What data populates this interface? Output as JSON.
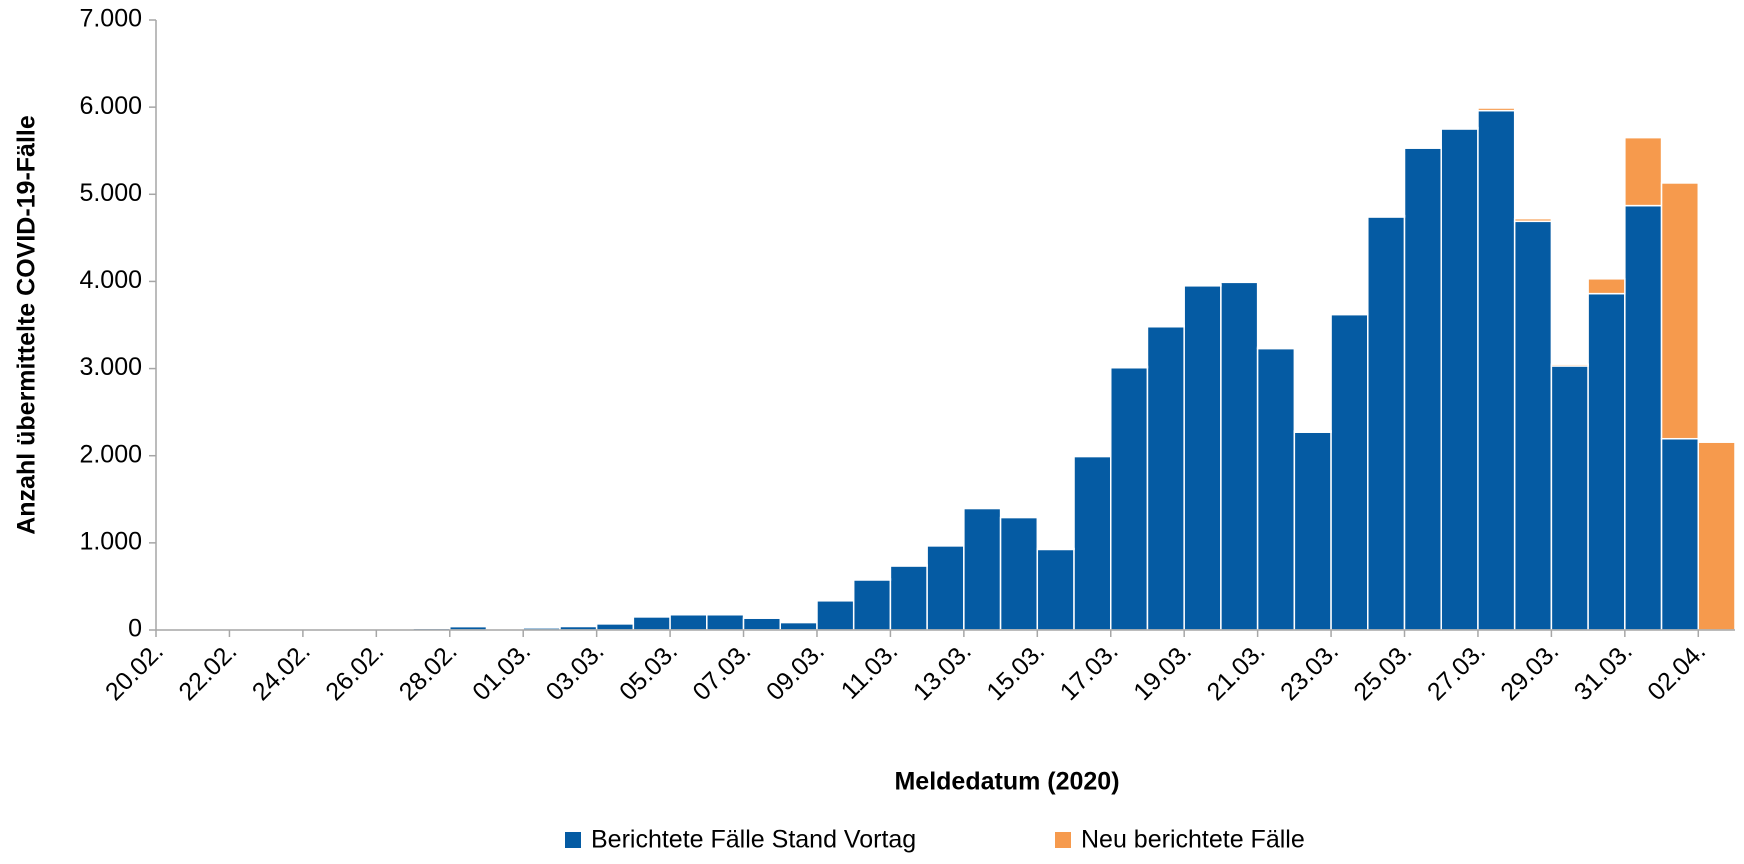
{
  "chart_data": {
    "type": "stacked_bar",
    "y_label": "Anzahl übermittelte COVID-19-Fälle",
    "x_label": "Meldedatum (2020)",
    "categories": [
      "20.02.",
      null,
      "22.02.",
      null,
      "24.02.",
      null,
      "26.02.",
      null,
      "28.02.",
      null,
      "01.03.",
      null,
      "03.03.",
      null,
      "05.03.",
      null,
      "07.03.",
      null,
      "09.03.",
      null,
      "11.03.",
      null,
      "13.03.",
      null,
      "15.03.",
      null,
      "17.03.",
      null,
      "19.03.",
      null,
      "21.03.",
      null,
      "23.03.",
      null,
      "25.03.",
      null,
      "27.03.",
      null,
      "29.03.",
      null,
      "31.03.",
      null,
      "02.04."
    ],
    "series": [
      {
        "name": "Berichtete Fälle Stand Vortag",
        "color": "#055ba3",
        "values": [
          0,
          0,
          0,
          0,
          0,
          0,
          0,
          20,
          40,
          5,
          25,
          40,
          70,
          150,
          175,
          175,
          135,
          85,
          335,
          575,
          735,
          965,
          1395,
          1290,
          925,
          1990,
          3010,
          3480,
          3950,
          3990,
          3230,
          2270,
          3620,
          4740,
          5530,
          5750,
          5960,
          4690,
          3030,
          3860,
          4870,
          2195,
          0
        ]
      },
      {
        "name": "Neu berichtete Fälle",
        "color": "#f69a4d",
        "values": [
          0,
          0,
          0,
          0,
          0,
          0,
          0,
          0,
          10,
          0,
          10,
          0,
          0,
          0,
          0,
          0,
          -15,
          0,
          0,
          10,
          10,
          0,
          10,
          -15,
          10,
          0,
          15,
          15,
          10,
          15,
          15,
          15,
          15,
          15,
          15,
          15,
          30,
          30,
          20,
          170,
          780,
          2935,
          2155
        ]
      }
    ],
    "ylim": [
      0,
      7000
    ],
    "yticks": [
      0,
      {
        "value": 1000,
        "label": "1.000"
      },
      {
        "value": 2000,
        "label": "2.000"
      },
      {
        "value": 3000,
        "label": "3.000"
      },
      {
        "value": 4000,
        "label": "4.000"
      },
      {
        "value": 5000,
        "label": "5.000"
      },
      {
        "value": 6000,
        "label": "6.000"
      },
      {
        "value": 7000,
        "label": "7.000"
      }
    ],
    "grid": false,
    "legend": "bottom"
  }
}
